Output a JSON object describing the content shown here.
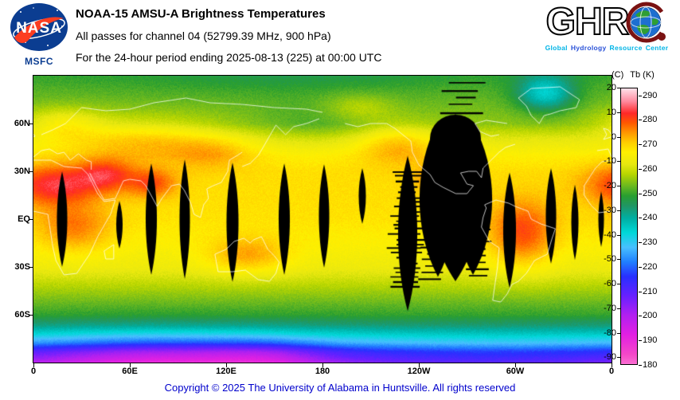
{
  "header": {
    "title": "NOAA-15 AMSU-A Brightness Temperatures",
    "subtitle": "All passes for channel 04 (52799.39 MHz, 900 hPa)",
    "period_line": "For the 24-hour period ending 2025-08-13 (225) at 00:00 UTC",
    "nasa": {
      "label": "NASA",
      "sub_label": "MSFC"
    },
    "ghrc": {
      "acronym": "GHR",
      "tagline": [
        {
          "text": "Global",
          "color": "#00b4e6"
        },
        {
          "text": "Hydrology",
          "color": "#2a52d8"
        },
        {
          "text": "Resource",
          "color": "#00b4e6"
        },
        {
          "text": "Center",
          "color": "#00b4e6"
        }
      ]
    }
  },
  "map": {
    "lat_ticks": [
      "60N",
      "30N",
      "EQ",
      "30S",
      "60S"
    ],
    "lon_ticks": [
      "0",
      "60E",
      "120E",
      "180",
      "120W",
      "60W",
      "0"
    ]
  },
  "colorbar": {
    "celsius_label": "(C)",
    "kelvin_label": "Tb (K)",
    "celsius_ticks": [
      "20",
      "10",
      "0",
      "-10",
      "-20",
      "-30",
      "-40",
      "-50",
      "-60",
      "-70",
      "-80",
      "-90"
    ],
    "kelvin_ticks": [
      "290",
      "280",
      "270",
      "260",
      "250",
      "240",
      "230",
      "220",
      "210",
      "200",
      "190",
      "180"
    ],
    "gradient_stops": [
      [
        293,
        "#ffe0e8"
      ],
      [
        288,
        "#ff8ca0"
      ],
      [
        283,
        "#ff2828"
      ],
      [
        279,
        "#ff5800"
      ],
      [
        275,
        "#ff9600"
      ],
      [
        271,
        "#ffcd00"
      ],
      [
        267,
        "#fff000"
      ],
      [
        262,
        "#e8e810"
      ],
      [
        258,
        "#b8d600"
      ],
      [
        253,
        "#68b820"
      ],
      [
        249,
        "#289e30"
      ],
      [
        245,
        "#209664"
      ],
      [
        240,
        "#00aea2"
      ],
      [
        234,
        "#00d8d8"
      ],
      [
        228,
        "#48c0ff"
      ],
      [
        222,
        "#2080ff"
      ],
      [
        216,
        "#2830ff"
      ],
      [
        208,
        "#6820ff"
      ],
      [
        200,
        "#b220f0"
      ],
      [
        192,
        "#e220e2"
      ],
      [
        184,
        "#f448c8"
      ],
      [
        178,
        "#fa6ed2"
      ]
    ]
  },
  "footer": {
    "copyright": "Copyright © 2025 The University of Alabama in Huntsville.  All rights reserved"
  },
  "chart_data": {
    "type": "heatmap",
    "title": "NOAA-15 AMSU-A Brightness Temperatures",
    "subtitle": "All passes for channel 04 (52799.39 MHz, 900 hPa)",
    "period": "For the 24-hour period ending 2025-08-13 (225) at 00:00 UTC",
    "x_ticks": [
      "0",
      "60E",
      "120E",
      "180",
      "120W",
      "60W",
      "0"
    ],
    "y_ticks": [
      "60N",
      "30N",
      "EQ",
      "30S",
      "60S"
    ],
    "colorbar_celsius_range": [
      20,
      -90
    ],
    "colorbar_kelvin_range": [
      290,
      180
    ],
    "value_unit": "Tb (K)",
    "notable_features": [
      "Warm red regions (~280 K) over North Africa, Middle East, India, central South America, Australia",
      "Yellow (~268 K) tropical and subtropical oceans",
      "Green (~250-255 K) mid- and high-latitude oceans",
      "Cyan cold patch over Greenland (~235 K)",
      "Cyan-blue-magenta (<230 K down to ~185 K) over Antarctica, coldest magenta sector at 0-120E",
      "Black lens-shaped inter-swath data gaps across low latitudes",
      "Large black missing-data region over eastern North America with striped dropouts nearby"
    ]
  }
}
